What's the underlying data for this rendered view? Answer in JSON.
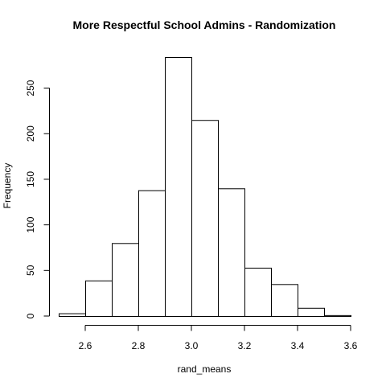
{
  "chart_data": {
    "type": "bar",
    "title": "More Respectful School Admins - Randomization",
    "xlabel": "rand_means",
    "ylabel": "Frequency",
    "bins": [
      {
        "lo": 2.5,
        "hi": 2.6,
        "count": 3
      },
      {
        "lo": 2.6,
        "hi": 2.7,
        "count": 39
      },
      {
        "lo": 2.7,
        "hi": 2.8,
        "count": 80
      },
      {
        "lo": 2.8,
        "hi": 2.9,
        "count": 138
      },
      {
        "lo": 2.9,
        "hi": 3.0,
        "count": 284
      },
      {
        "lo": 3.0,
        "hi": 3.1,
        "count": 215
      },
      {
        "lo": 3.1,
        "hi": 3.2,
        "count": 140
      },
      {
        "lo": 3.2,
        "hi": 3.3,
        "count": 53
      },
      {
        "lo": 3.3,
        "hi": 3.4,
        "count": 35
      },
      {
        "lo": 3.4,
        "hi": 3.5,
        "count": 9
      },
      {
        "lo": 3.5,
        "hi": 3.6,
        "count": 1
      }
    ],
    "xticks": [
      "2.6",
      "2.8",
      "3.0",
      "3.2",
      "3.4",
      "3.6"
    ],
    "yticks": [
      "0",
      "50",
      "100",
      "150",
      "200",
      "250"
    ],
    "xlim": [
      2.5,
      3.6
    ],
    "ylim": [
      0,
      284
    ],
    "grid": false,
    "legend": "none",
    "bar_fill": "#ffffff",
    "bar_stroke": "#000000"
  }
}
